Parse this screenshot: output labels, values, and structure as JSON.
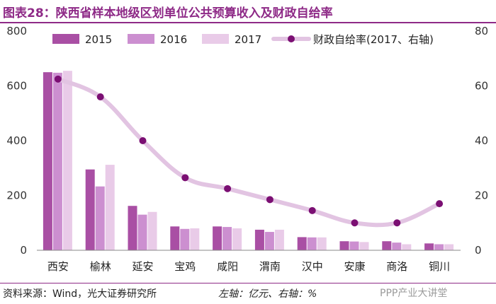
{
  "title": "图表28：陕西省样本地级区划单位公共预算收入及财政自给率",
  "source": "资料来源：Wind，光大证券研究所",
  "axis_note": "左轴：亿元、右轴：%",
  "watermark": "PPP产业大讲堂",
  "colors": {
    "s2015": "#a94fa4",
    "s2016": "#cc8fd0",
    "s2017": "#e9cbe8",
    "line": "#e2c4e2",
    "marker": "#7b0f73",
    "title": "#8e2a87"
  },
  "chart_data": {
    "type": "bar",
    "title": "陕西省样本地级区划单位公共预算收入及财政自给率",
    "categories": [
      "西安",
      "榆林",
      "延安",
      "宝鸡",
      "咸阳",
      "渭南",
      "汉中",
      "安康",
      "商洛",
      "铜川"
    ],
    "series": [
      {
        "name": "2015",
        "type": "bar",
        "axis": "left",
        "values": [
          650,
          295,
          162,
          87,
          87,
          75,
          48,
          33,
          33,
          25
        ]
      },
      {
        "name": "2016",
        "type": "bar",
        "axis": "left",
        "values": [
          648,
          233,
          130,
          78,
          85,
          67,
          47,
          32,
          28,
          22
        ]
      },
      {
        "name": "2017",
        "type": "bar",
        "axis": "left",
        "values": [
          655,
          312,
          140,
          80,
          80,
          75,
          47,
          30,
          22,
          22
        ]
      },
      {
        "name": "财政自给率(2017、右轴)",
        "type": "line",
        "axis": "right",
        "values": [
          62.5,
          56,
          40,
          26.5,
          22.5,
          18.5,
          14.5,
          10,
          10,
          17
        ]
      }
    ],
    "y_left": {
      "min": 0,
      "max": 800,
      "ticks": [
        0,
        200,
        400,
        600,
        800
      ]
    },
    "y_right": {
      "min": 0,
      "max": 80,
      "ticks": [
        0,
        20,
        40,
        60,
        80
      ]
    },
    "legend_position": "top"
  }
}
